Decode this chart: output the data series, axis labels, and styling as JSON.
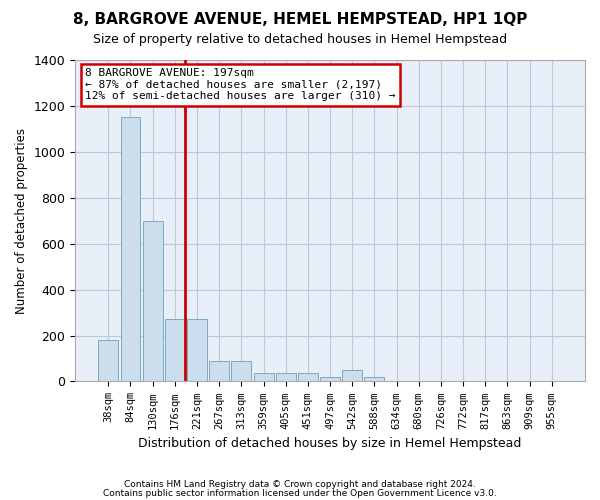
{
  "title": "8, BARGROVE AVENUE, HEMEL HEMPSTEAD, HP1 1QP",
  "subtitle": "Size of property relative to detached houses in Hemel Hempstead",
  "xlabel": "Distribution of detached houses by size in Hemel Hempstead",
  "ylabel": "Number of detached properties",
  "bin_labels": [
    "38sqm",
    "84sqm",
    "130sqm",
    "176sqm",
    "221sqm",
    "267sqm",
    "313sqm",
    "359sqm",
    "405sqm",
    "451sqm",
    "497sqm",
    "542sqm",
    "588sqm",
    "634sqm",
    "680sqm",
    "726sqm",
    "772sqm",
    "817sqm",
    "863sqm",
    "909sqm",
    "955sqm"
  ],
  "bar_heights": [
    182,
    1150,
    700,
    270,
    270,
    90,
    90,
    35,
    35,
    35,
    20,
    50,
    20,
    0,
    0,
    0,
    0,
    0,
    0,
    0,
    0
  ],
  "bar_color": "#ccdded",
  "bar_edge_color": "#7aaabb",
  "vline_color": "#cc0000",
  "property_sqm": 197,
  "bin_start_sqm": [
    38,
    84,
    130,
    176,
    221,
    267,
    313,
    359,
    405,
    451,
    497,
    542,
    588,
    634,
    680,
    726,
    772,
    817,
    863,
    909,
    955
  ],
  "ylim": [
    0,
    1400
  ],
  "yticks": [
    0,
    200,
    400,
    600,
    800,
    1000,
    1200,
    1400
  ],
  "annotation_title": "8 BARGROVE AVENUE: 197sqm",
  "annotation_line1": "← 87% of detached houses are smaller (2,197)",
  "annotation_line2": "12% of semi-detached houses are larger (310) →",
  "annotation_box_edgecolor": "#cc0000",
  "footer_line1": "Contains HM Land Registry data © Crown copyright and database right 2024.",
  "footer_line2": "Contains public sector information licensed under the Open Government Licence v3.0.",
  "background_color": "#e8eff8",
  "grid_color": "#c0c8d8"
}
